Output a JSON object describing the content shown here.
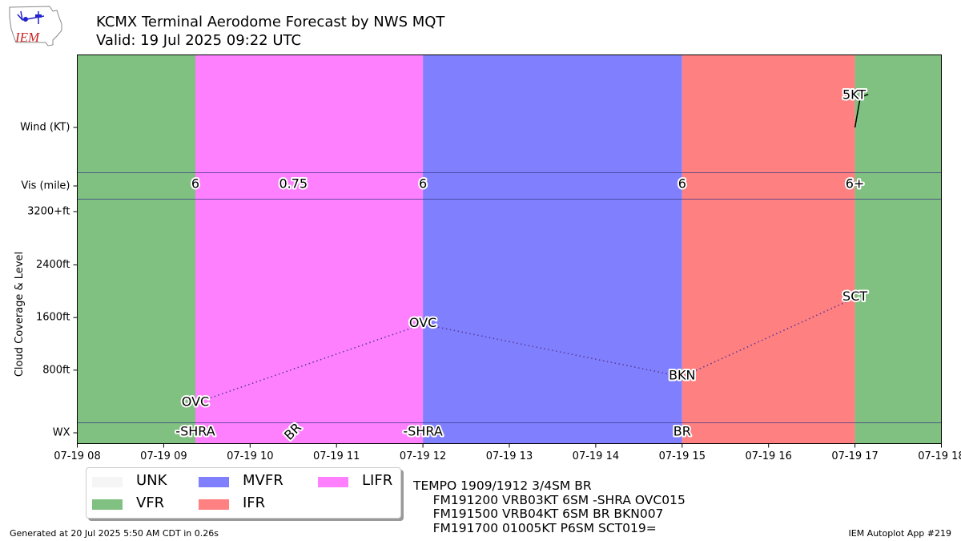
{
  "header": {
    "title": "KCMX Terminal Aerodome Forecast by NWS MQT",
    "subtitle": "Valid: 19 Jul 2025 09:22 UTC",
    "logo_text": "IEM"
  },
  "colors": {
    "UNK": "#f5f5f5",
    "VFR": "#80c080",
    "MVFR": "#8080ff",
    "IFR": "#ff8080",
    "LIFR": "#ff80ff"
  },
  "chart_data": {
    "type": "timeline",
    "x_range": [
      "07-19 08",
      "07-19 18"
    ],
    "x_ticks": [
      "07-19 08",
      "07-19 09",
      "07-19 10",
      "07-19 11",
      "07-19 12",
      "07-19 13",
      "07-19 14",
      "07-19 15",
      "07-19 16",
      "07-19 17",
      "07-19 18"
    ],
    "row_labels": [
      "Wind (KT)",
      "Vis (mile)",
      "WX"
    ],
    "cloud_axis": {
      "label": "Cloud Coverage & Level",
      "ticks": [
        "800ft",
        "1600ft",
        "2400ft",
        "3200+ft"
      ],
      "tick_values": [
        800,
        1600,
        2400,
        3200
      ],
      "range": [
        0,
        3400
      ]
    },
    "flight_categories": [
      {
        "start": 8.0,
        "end": 9.367,
        "category": "VFR"
      },
      {
        "start": 9.367,
        "end": 12.0,
        "category": "LIFR"
      },
      {
        "start": 12.0,
        "end": 15.0,
        "category": "MVFR"
      },
      {
        "start": 15.0,
        "end": 17.0,
        "category": "IFR"
      },
      {
        "start": 17.0,
        "end": 18.0,
        "category": "VFR"
      }
    ],
    "visibility": [
      {
        "x": 9.367,
        "label": "6"
      },
      {
        "x": 10.5,
        "label": "0.75"
      },
      {
        "x": 12.0,
        "label": "6"
      },
      {
        "x": 15.0,
        "label": "6"
      },
      {
        "x": 17.0,
        "label": "6+"
      }
    ],
    "weather": [
      {
        "x": 9.367,
        "label": "-SHRA"
      },
      {
        "x": 10.5,
        "label": "BR"
      },
      {
        "x": 12.0,
        "label": "-SHRA"
      },
      {
        "x": 15.0,
        "label": "BR"
      }
    ],
    "clouds": [
      {
        "x": 9.367,
        "level": 300,
        "label": "OVC"
      },
      {
        "x": 12.0,
        "level": 1500,
        "label": "OVC"
      },
      {
        "x": 15.0,
        "level": 700,
        "label": "BKN"
      },
      {
        "x": 17.0,
        "level": 1900,
        "label": "SCT"
      }
    ],
    "wind": [
      {
        "x": 17.0,
        "direction": 10,
        "speed": 5,
        "label": "5KT"
      }
    ]
  },
  "legend": {
    "items": [
      {
        "label": "UNK",
        "key": "UNK"
      },
      {
        "label": "VFR",
        "key": "VFR"
      },
      {
        "label": "MVFR",
        "key": "MVFR"
      },
      {
        "label": "IFR",
        "key": "IFR"
      },
      {
        "label": "LIFR",
        "key": "LIFR"
      }
    ]
  },
  "raw_taf": "TEMPO 1909/1912 3/4SM BR\n     FM191200 VRB03KT 6SM -SHRA OVC015\n     FM191500 VRB04KT 6SM BR BKN007\n     FM191700 01005KT P6SM SCT019=",
  "footer": {
    "left": "Generated at 20 Jul 2025 5:50 AM CDT in 0.26s",
    "right": "IEM Autoplot App #219"
  }
}
